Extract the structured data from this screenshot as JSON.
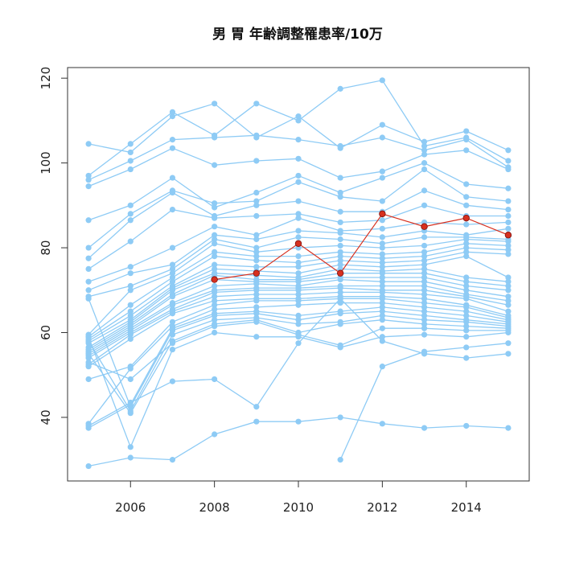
{
  "chart_data": {
    "type": "line",
    "title": "男 胃 年齢調整罹患率/10万",
    "xlabel": "",
    "ylabel": "",
    "xlim": [
      2004.5,
      2015.5
    ],
    "ylim": [
      25,
      122.5
    ],
    "x_ticks": [
      2006,
      2008,
      2010,
      2012,
      2014
    ],
    "y_ticks": [
      40,
      60,
      80,
      100,
      120
    ],
    "grid": false,
    "legend": "none",
    "colors": {
      "background_series": "#8ecbf5",
      "highlight_series": "#d7301f"
    },
    "series": [
      {
        "x": [
          2005,
          2006,
          2007,
          2008,
          2009,
          2010,
          2011,
          2012,
          2013,
          2014,
          2015
        ],
        "values": [
          104.5,
          102.5,
          111.0,
          114.0,
          106.0,
          111.0,
          103.5,
          109.0,
          105.0,
          107.5,
          103.0
        ]
      },
      {
        "x": [
          2005,
          2006,
          2007,
          2008,
          2009,
          2010,
          2011,
          2012,
          2013,
          2014,
          2015
        ],
        "values": [
          97.0,
          104.5,
          112.0,
          106.5,
          114.0,
          110.0,
          117.5,
          119.5,
          104.0,
          106.0,
          100.5
        ]
      },
      {
        "x": [
          2005,
          2006,
          2007,
          2008,
          2009,
          2010,
          2011,
          2012,
          2013,
          2014,
          2015
        ],
        "values": [
          96.0,
          100.5,
          105.5,
          106.0,
          106.5,
          105.5,
          104.0,
          106.0,
          103.0,
          105.5,
          99.0
        ]
      },
      {
        "x": [
          2005,
          2006,
          2007,
          2008,
          2009,
          2010,
          2011,
          2012,
          2013,
          2014,
          2015
        ],
        "values": [
          94.5,
          98.5,
          103.5,
          99.5,
          100.5,
          101.0,
          96.5,
          98.0,
          102.0,
          103.0,
          98.5
        ]
      },
      {
        "x": [
          2005,
          2006,
          2007,
          2008,
          2009,
          2010,
          2011,
          2012,
          2013,
          2014,
          2015
        ],
        "values": [
          86.5,
          90.0,
          96.5,
          89.5,
          93.0,
          97.0,
          93.0,
          96.5,
          100.0,
          95.0,
          94.0
        ]
      },
      {
        "x": [
          2005,
          2006,
          2007,
          2008,
          2009,
          2010,
          2011,
          2012,
          2013,
          2014,
          2015
        ],
        "values": [
          80.0,
          88.0,
          93.5,
          90.5,
          91.0,
          95.5,
          92.0,
          91.0,
          98.5,
          92.0,
          91.0
        ]
      },
      {
        "x": [
          2005,
          2006,
          2007,
          2008,
          2009,
          2010,
          2011,
          2012,
          2013,
          2014,
          2015
        ],
        "values": [
          77.5,
          86.5,
          93.0,
          87.5,
          90.0,
          91.0,
          88.5,
          88.5,
          93.5,
          90.0,
          89.0
        ]
      },
      {
        "x": [
          2005,
          2006,
          2007,
          2008,
          2009,
          2010,
          2011,
          2012,
          2013,
          2014,
          2015
        ],
        "values": [
          75.0,
          81.5,
          89.0,
          87.0,
          87.5,
          88.0,
          86.0,
          86.5,
          90.0,
          87.5,
          87.5
        ]
      },
      {
        "x": [
          2005,
          2006,
          2007,
          2008,
          2009,
          2010,
          2011,
          2012,
          2013,
          2014,
          2015
        ],
        "values": [
          72.0,
          75.5,
          80.0,
          85.0,
          83.0,
          87.0,
          84.0,
          84.5,
          86.0,
          85.5,
          86.0
        ]
      },
      {
        "x": [
          2005,
          2006,
          2007,
          2008,
          2009,
          2010,
          2011,
          2012,
          2013,
          2014,
          2015
        ],
        "values": [
          70.0,
          74.0,
          76.0,
          83.0,
          82.0,
          84.0,
          83.5,
          82.5,
          84.0,
          83.0,
          84.5
        ]
      },
      {
        "x": [
          2005,
          2006,
          2007,
          2008,
          2009,
          2010,
          2011,
          2012,
          2013,
          2014,
          2015
        ],
        "values": [
          68.5,
          71.0,
          75.0,
          82.0,
          80.0,
          82.5,
          82.0,
          81.0,
          82.5,
          82.5,
          82.0
        ]
      },
      {
        "x": [
          2005,
          2006,
          2007,
          2008,
          2009,
          2010,
          2011,
          2012,
          2013,
          2014,
          2015
        ],
        "values": [
          59.5,
          70.0,
          74.0,
          81.0,
          79.0,
          80.0,
          80.5,
          80.0,
          80.5,
          82.0,
          81.5
        ]
      },
      {
        "x": [
          2005,
          2006,
          2007,
          2008,
          2009,
          2010,
          2011,
          2012,
          2013,
          2014,
          2015
        ],
        "values": [
          59.0,
          66.5,
          73.0,
          79.0,
          78.0,
          78.0,
          79.0,
          78.5,
          79.0,
          81.0,
          80.5
        ]
      },
      {
        "x": [
          2005,
          2006,
          2007,
          2008,
          2009,
          2010,
          2011,
          2012,
          2013,
          2014,
          2015
        ],
        "values": [
          58.5,
          65.0,
          72.0,
          78.0,
          77.0,
          76.5,
          78.0,
          77.5,
          78.0,
          80.0,
          79.5
        ]
      },
      {
        "x": [
          2005,
          2006,
          2007,
          2008,
          2009,
          2010,
          2011,
          2012,
          2013,
          2014,
          2015
        ],
        "values": [
          58.0,
          64.0,
          71.0,
          76.0,
          75.5,
          75.5,
          77.0,
          76.5,
          77.0,
          79.0,
          78.5
        ]
      },
      {
        "x": [
          2005,
          2006,
          2007,
          2008,
          2009,
          2010,
          2011,
          2012,
          2013,
          2014,
          2015
        ],
        "values": [
          57.5,
          63.0,
          70.5,
          75.0,
          74.5,
          74.0,
          76.0,
          75.5,
          76.0,
          78.0,
          73.0
        ]
      },
      {
        "x": [
          2005,
          2006,
          2007,
          2008,
          2009,
          2010,
          2011,
          2012,
          2013,
          2014,
          2015
        ],
        "values": [
          56.5,
          62.5,
          70.0,
          74.0,
          73.5,
          73.0,
          75.0,
          74.5,
          75.0,
          73.0,
          72.0
        ]
      },
      {
        "x": [
          2005,
          2006,
          2007,
          2008,
          2009,
          2010,
          2011,
          2012,
          2013,
          2014,
          2015
        ],
        "values": [
          56.0,
          62.0,
          69.0,
          73.5,
          72.5,
          72.5,
          74.0,
          74.0,
          74.0,
          72.0,
          71.0
        ]
      },
      {
        "x": [
          2005,
          2006,
          2007,
          2008,
          2009,
          2010,
          2011,
          2012,
          2013,
          2014,
          2015
        ],
        "values": [
          55.5,
          61.5,
          68.5,
          72.5,
          72.0,
          72.0,
          73.0,
          73.0,
          73.0,
          71.0,
          70.0
        ]
      },
      {
        "x": [
          2005,
          2006,
          2007,
          2008,
          2009,
          2010,
          2011,
          2012,
          2013,
          2014,
          2015
        ],
        "values": [
          55.0,
          61.0,
          67.0,
          71.0,
          71.5,
          71.0,
          72.5,
          72.0,
          72.0,
          70.0,
          68.5
        ]
      },
      {
        "x": [
          2005,
          2006,
          2007,
          2008,
          2009,
          2010,
          2011,
          2012,
          2013,
          2014,
          2015
        ],
        "values": [
          54.5,
          60.5,
          66.5,
          70.0,
          70.5,
          70.5,
          71.0,
          71.0,
          71.0,
          69.0,
          67.5
        ]
      },
      {
        "x": [
          2005,
          2006,
          2007,
          2008,
          2009,
          2010,
          2011,
          2012,
          2013,
          2014,
          2015
        ],
        "values": [
          54.0,
          60.0,
          65.5,
          69.5,
          70.0,
          70.0,
          70.5,
          70.0,
          70.0,
          68.5,
          66.5
        ]
      },
      {
        "x": [
          2005,
          2006,
          2007,
          2008,
          2009,
          2010,
          2011,
          2012,
          2013,
          2014,
          2015
        ],
        "values": [
          52.5,
          59.5,
          65.0,
          68.5,
          69.0,
          69.0,
          69.5,
          69.5,
          69.0,
          68.0,
          65.0
        ]
      },
      {
        "x": [
          2005,
          2006,
          2007,
          2008,
          2009,
          2010,
          2011,
          2012,
          2013,
          2014,
          2015
        ],
        "values": [
          52.0,
          58.5,
          64.5,
          67.5,
          68.0,
          68.0,
          68.5,
          68.5,
          68.0,
          66.5,
          64.0
        ]
      },
      {
        "x": [
          2005,
          2006,
          2007,
          2008,
          2009,
          2010,
          2011,
          2012,
          2013,
          2014,
          2015
        ],
        "values": [
          49.0,
          52.0,
          62.5,
          66.5,
          67.5,
          67.5,
          68.0,
          68.0,
          67.0,
          66.0,
          63.5
        ]
      },
      {
        "x": [
          2005,
          2006,
          2007,
          2008,
          2009,
          2010,
          2011,
          2012,
          2013,
          2014,
          2015
        ],
        "values": [
          38.5,
          51.5,
          61.5,
          65.5,
          66.0,
          66.5,
          67.0,
          67.0,
          66.0,
          65.0,
          63.0
        ]
      },
      {
        "x": [
          2005,
          2006,
          2007,
          2008,
          2009,
          2010,
          2011,
          2012,
          2013,
          2014,
          2015
        ],
        "values": [
          37.5,
          43.0,
          61.0,
          64.5,
          65.0,
          64.0,
          65.0,
          66.0,
          65.0,
          64.0,
          62.5
        ]
      },
      {
        "x": [
          2005,
          2006,
          2007,
          2008,
          2009,
          2010,
          2011,
          2012,
          2013,
          2014,
          2015
        ],
        "values": [
          68.0,
          42.5,
          60.5,
          64.0,
          64.5,
          63.0,
          64.5,
          65.0,
          64.0,
          63.0,
          62.0
        ]
      },
      {
        "x": [
          2005,
          2006,
          2007,
          2008,
          2009,
          2010,
          2011,
          2012,
          2013,
          2014,
          2015
        ],
        "values": [
          58.0,
          41.5,
          59.5,
          63.0,
          63.5,
          62.0,
          62.5,
          64.0,
          63.0,
          62.5,
          61.5
        ]
      },
      {
        "x": [
          2005,
          2006,
          2007,
          2008,
          2009,
          2010,
          2011,
          2012,
          2013,
          2014,
          2015
        ],
        "values": [
          55.0,
          41.0,
          58.0,
          62.0,
          63.0,
          60.0,
          62.0,
          63.0,
          62.0,
          61.5,
          61.0
        ]
      },
      {
        "x": [
          2005,
          2006,
          2007,
          2008,
          2009,
          2010,
          2011,
          2012,
          2013,
          2014,
          2015
        ],
        "values": [
          53.0,
          49.0,
          57.5,
          61.5,
          62.5,
          59.5,
          57.0,
          61.0,
          61.0,
          60.5,
          60.5
        ]
      },
      {
        "x": [
          2005,
          2006,
          2007,
          2008,
          2009,
          2010,
          2011,
          2012,
          2013,
          2014,
          2015
        ],
        "values": [
          59.0,
          33.0,
          56.0,
          60.0,
          59.0,
          59.0,
          56.5,
          59.0,
          59.5,
          59.0,
          60.0
        ]
      },
      {
        "x": [
          2005,
          2006,
          2007,
          2008,
          2009,
          2010,
          2011,
          2012,
          2013,
          2014,
          2015
        ],
        "values": [
          28.5,
          30.5,
          30.0,
          36.0,
          39.0,
          39.0,
          40.0,
          38.5,
          37.5,
          38.0,
          37.5
        ]
      },
      {
        "x": [
          2005,
          2006,
          2007,
          2008,
          2009,
          2010,
          2011,
          2012,
          2013,
          2014,
          2015
        ],
        "values": [
          38.0,
          43.5,
          48.5,
          49.0,
          42.5,
          57.5,
          68.0,
          58.0,
          55.0,
          54.0,
          55.0
        ]
      },
      {
        "x": [
          2011,
          2012,
          2013,
          2014,
          2015
        ],
        "values": [
          30.0,
          52.0,
          55.5,
          56.5,
          57.5
        ]
      }
    ],
    "highlight_series": {
      "x": [
        2008,
        2009,
        2010,
        2011,
        2012,
        2013,
        2014,
        2015
      ],
      "values": [
        72.5,
        74.0,
        81.0,
        74.0,
        88.0,
        85.0,
        87.0,
        83.0
      ]
    }
  }
}
